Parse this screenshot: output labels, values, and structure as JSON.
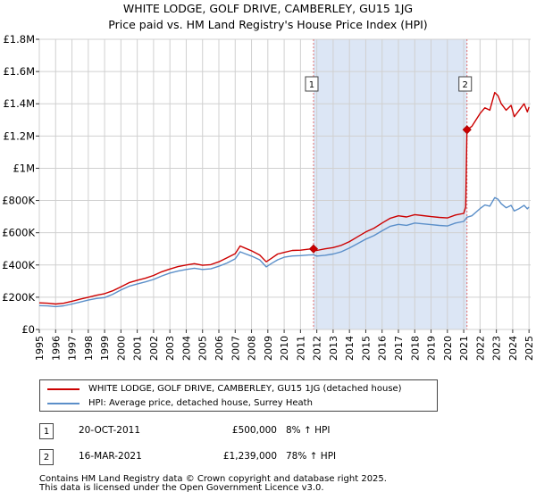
{
  "title_line1": "WHITE LODGE, GOLF DRIVE, CAMBERLEY, GU15 1JG",
  "title_line2": "Price paid vs. HM Land Registry's House Price Index (HPI)",
  "colors": {
    "property": "#cc0000",
    "hpi": "#5b8fc9",
    "shade": "#dce6f5",
    "marker_line": "#e07070"
  },
  "chart_data": {
    "type": "line",
    "ylim": [
      0,
      1800000
    ],
    "y_ticks": [
      {
        "value": 0,
        "label": "£0"
      },
      {
        "value": 200000,
        "label": "£200K"
      },
      {
        "value": 400000,
        "label": "£400K"
      },
      {
        "value": 600000,
        "label": "£600K"
      },
      {
        "value": 800000,
        "label": "£800K"
      },
      {
        "value": 1000000,
        "label": "£1M"
      },
      {
        "value": 1200000,
        "label": "£1.2M"
      },
      {
        "value": 1400000,
        "label": "£1.4M"
      },
      {
        "value": 1600000,
        "label": "£1.6M"
      },
      {
        "value": 1800000,
        "label": "£1.8M"
      }
    ],
    "xlim": [
      1995,
      2025.1
    ],
    "x_ticks": [
      "1995",
      "1996",
      "1997",
      "1998",
      "1999",
      "2000",
      "2001",
      "2002",
      "2003",
      "2004",
      "2005",
      "2006",
      "2007",
      "2008",
      "2009",
      "2010",
      "2011",
      "2012",
      "2013",
      "2014",
      "2015",
      "2016",
      "2017",
      "2018",
      "2019",
      "2020",
      "2021",
      "2022",
      "2023",
      "2024",
      "2025"
    ],
    "shaded_period": [
      2011.8,
      2021.2
    ],
    "series": [
      {
        "name": "WHITE LODGE, GOLF DRIVE, CAMBERLEY, GU15 1JG (detached house)",
        "points": [
          [
            1995,
            165000
          ],
          [
            1995.5,
            163000
          ],
          [
            1996,
            158000
          ],
          [
            1996.5,
            163000
          ],
          [
            1997,
            175000
          ],
          [
            1997.5,
            188000
          ],
          [
            1998,
            200000
          ],
          [
            1998.5,
            212000
          ],
          [
            1999,
            222000
          ],
          [
            1999.5,
            240000
          ],
          [
            2000,
            265000
          ],
          [
            2000.5,
            290000
          ],
          [
            2001,
            305000
          ],
          [
            2001.5,
            318000
          ],
          [
            2002,
            335000
          ],
          [
            2002.5,
            358000
          ],
          [
            2003,
            375000
          ],
          [
            2003.5,
            390000
          ],
          [
            2004,
            400000
          ],
          [
            2004.5,
            408000
          ],
          [
            2005,
            398000
          ],
          [
            2005.5,
            402000
          ],
          [
            2006,
            420000
          ],
          [
            2006.5,
            445000
          ],
          [
            2007,
            470000
          ],
          [
            2007.3,
            518000
          ],
          [
            2007.6,
            505000
          ],
          [
            2008,
            488000
          ],
          [
            2008.5,
            462000
          ],
          [
            2008.9,
            420000
          ],
          [
            2009.2,
            440000
          ],
          [
            2009.6,
            468000
          ],
          [
            2010,
            478000
          ],
          [
            2010.5,
            490000
          ],
          [
            2011,
            492000
          ],
          [
            2011.5,
            498000
          ],
          [
            2011.8,
            500000
          ],
          [
            2012,
            490000
          ],
          [
            2012.5,
            500000
          ],
          [
            2013,
            508000
          ],
          [
            2013.5,
            522000
          ],
          [
            2014,
            545000
          ],
          [
            2014.5,
            575000
          ],
          [
            2015,
            605000
          ],
          [
            2015.5,
            628000
          ],
          [
            2016,
            660000
          ],
          [
            2016.5,
            690000
          ],
          [
            2017,
            705000
          ],
          [
            2017.5,
            698000
          ],
          [
            2018,
            712000
          ],
          [
            2018.5,
            706000
          ],
          [
            2019,
            700000
          ],
          [
            2019.5,
            695000
          ],
          [
            2020,
            692000
          ],
          [
            2020.5,
            710000
          ],
          [
            2021,
            720000
          ],
          [
            2021.12,
            760000
          ],
          [
            2021.2,
            1239000
          ],
          [
            2021.5,
            1260000
          ],
          [
            2022,
            1340000
          ],
          [
            2022.3,
            1375000
          ],
          [
            2022.6,
            1360000
          ],
          [
            2022.9,
            1470000
          ],
          [
            2023.1,
            1450000
          ],
          [
            2023.3,
            1400000
          ],
          [
            2023.6,
            1360000
          ],
          [
            2023.9,
            1390000
          ],
          [
            2024.1,
            1320000
          ],
          [
            2024.4,
            1360000
          ],
          [
            2024.7,
            1400000
          ],
          [
            2024.9,
            1350000
          ],
          [
            2025,
            1380000
          ]
        ]
      },
      {
        "name": "HPI: Average price, detached house, Surrey Heath",
        "points": [
          [
            1995,
            148000
          ],
          [
            1995.5,
            146000
          ],
          [
            1996,
            142000
          ],
          [
            1996.5,
            147000
          ],
          [
            1997,
            158000
          ],
          [
            1997.5,
            170000
          ],
          [
            1998,
            182000
          ],
          [
            1998.5,
            192000
          ],
          [
            1999,
            198000
          ],
          [
            1999.5,
            218000
          ],
          [
            2000,
            245000
          ],
          [
            2000.5,
            268000
          ],
          [
            2001,
            282000
          ],
          [
            2001.5,
            295000
          ],
          [
            2002,
            310000
          ],
          [
            2002.5,
            332000
          ],
          [
            2003,
            350000
          ],
          [
            2003.5,
            362000
          ],
          [
            2004,
            372000
          ],
          [
            2004.5,
            380000
          ],
          [
            2005,
            372000
          ],
          [
            2005.5,
            376000
          ],
          [
            2006,
            392000
          ],
          [
            2006.5,
            412000
          ],
          [
            2007,
            438000
          ],
          [
            2007.3,
            482000
          ],
          [
            2007.6,
            470000
          ],
          [
            2008,
            455000
          ],
          [
            2008.5,
            432000
          ],
          [
            2008.9,
            388000
          ],
          [
            2009.2,
            408000
          ],
          [
            2009.6,
            432000
          ],
          [
            2010,
            448000
          ],
          [
            2010.5,
            456000
          ],
          [
            2011,
            458000
          ],
          [
            2011.5,
            462000
          ],
          [
            2011.8,
            463000
          ],
          [
            2012,
            455000
          ],
          [
            2012.5,
            460000
          ],
          [
            2013,
            468000
          ],
          [
            2013.5,
            482000
          ],
          [
            2014,
            505000
          ],
          [
            2014.5,
            532000
          ],
          [
            2015,
            560000
          ],
          [
            2015.5,
            582000
          ],
          [
            2016,
            612000
          ],
          [
            2016.5,
            640000
          ],
          [
            2017,
            652000
          ],
          [
            2017.5,
            646000
          ],
          [
            2018,
            660000
          ],
          [
            2018.5,
            655000
          ],
          [
            2019,
            650000
          ],
          [
            2019.5,
            645000
          ],
          [
            2020,
            642000
          ],
          [
            2020.5,
            660000
          ],
          [
            2021,
            670000
          ],
          [
            2021.2,
            696000
          ],
          [
            2021.5,
            705000
          ],
          [
            2022,
            750000
          ],
          [
            2022.3,
            772000
          ],
          [
            2022.6,
            765000
          ],
          [
            2022.9,
            818000
          ],
          [
            2023.1,
            808000
          ],
          [
            2023.3,
            780000
          ],
          [
            2023.6,
            755000
          ],
          [
            2023.9,
            770000
          ],
          [
            2024.1,
            735000
          ],
          [
            2024.4,
            750000
          ],
          [
            2024.7,
            770000
          ],
          [
            2024.9,
            748000
          ],
          [
            2025,
            760000
          ]
        ]
      }
    ],
    "sales": [
      {
        "id": "1",
        "x": 2011.8,
        "price": 500000
      },
      {
        "id": "2",
        "x": 2021.2,
        "price": 1239000
      }
    ]
  },
  "legend": {
    "property_label": "WHITE LODGE, GOLF DRIVE, CAMBERLEY, GU15 1JG (detached house)",
    "hpi_label": "HPI: Average price, detached house, Surrey Heath"
  },
  "sales_table": [
    {
      "id": "1",
      "date": "20-OCT-2011",
      "price": "£500,000",
      "hpi": "8% ↑ HPI"
    },
    {
      "id": "2",
      "date": "16-MAR-2021",
      "price": "£1,239,000",
      "hpi": "78% ↑ HPI"
    }
  ],
  "footer_line1": "Contains HM Land Registry data © Crown copyright and database right 2025.",
  "footer_line2": "This data is licensed under the Open Government Licence v3.0."
}
